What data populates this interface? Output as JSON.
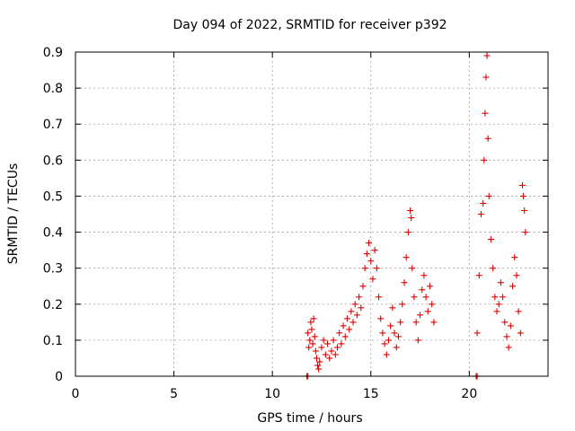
{
  "chart_data": {
    "type": "scatter",
    "title": "Day 094 of 2022, SRMTID for receiver p392",
    "xlabel": "GPS time / hours",
    "ylabel": "SRMTID / TECUs",
    "xlim": [
      0,
      24
    ],
    "ylim": [
      0,
      0.9
    ],
    "xticks": [
      0,
      5,
      10,
      15,
      20
    ],
    "xtick_labels": [
      "0",
      "5",
      "10",
      "15",
      "20"
    ],
    "yticks": [
      0,
      0.1,
      0.2,
      0.3,
      0.4,
      0.5,
      0.6,
      0.7,
      0.8,
      0.9
    ],
    "ytick_labels": [
      "0",
      "0.1",
      "0.2",
      "0.3",
      "0.4",
      "0.5",
      "0.6",
      "0.7",
      "0.8",
      "0.9"
    ],
    "grid": true,
    "marker": "plus",
    "color": "#e00000",
    "series": [
      {
        "points": [
          [
            11.75,
            0.0
          ],
          [
            11.8,
            0.0
          ],
          [
            20.35,
            0.0
          ],
          [
            20.4,
            0.0
          ],
          [
            11.8,
            0.12
          ],
          [
            11.85,
            0.08
          ],
          [
            11.9,
            0.1
          ],
          [
            11.95,
            0.15
          ],
          [
            12.0,
            0.13
          ],
          [
            12.05,
            0.09
          ],
          [
            12.1,
            0.16
          ],
          [
            12.15,
            0.11
          ],
          [
            12.2,
            0.07
          ],
          [
            12.25,
            0.05
          ],
          [
            12.3,
            0.03
          ],
          [
            12.35,
            0.02
          ],
          [
            12.4,
            0.04
          ],
          [
            12.5,
            0.08
          ],
          [
            12.6,
            0.1
          ],
          [
            12.7,
            0.06
          ],
          [
            12.8,
            0.09
          ],
          [
            12.9,
            0.05
          ],
          [
            13.0,
            0.07
          ],
          [
            13.1,
            0.1
          ],
          [
            13.2,
            0.06
          ],
          [
            13.3,
            0.08
          ],
          [
            13.4,
            0.12
          ],
          [
            13.5,
            0.09
          ],
          [
            13.6,
            0.14
          ],
          [
            13.7,
            0.11
          ],
          [
            13.8,
            0.16
          ],
          [
            13.9,
            0.13
          ],
          [
            14.0,
            0.18
          ],
          [
            14.1,
            0.15
          ],
          [
            14.2,
            0.2
          ],
          [
            14.3,
            0.17
          ],
          [
            14.4,
            0.22
          ],
          [
            14.5,
            0.19
          ],
          [
            14.6,
            0.25
          ],
          [
            14.7,
            0.3
          ],
          [
            14.8,
            0.34
          ],
          [
            14.9,
            0.37
          ],
          [
            15.0,
            0.32
          ],
          [
            15.1,
            0.27
          ],
          [
            15.2,
            0.35
          ],
          [
            15.3,
            0.3
          ],
          [
            15.4,
            0.22
          ],
          [
            15.5,
            0.16
          ],
          [
            15.6,
            0.12
          ],
          [
            15.7,
            0.09
          ],
          [
            15.8,
            0.06
          ],
          [
            15.9,
            0.1
          ],
          [
            16.0,
            0.14
          ],
          [
            16.1,
            0.19
          ],
          [
            16.2,
            0.12
          ],
          [
            16.3,
            0.08
          ],
          [
            16.4,
            0.11
          ],
          [
            16.5,
            0.15
          ],
          [
            16.6,
            0.2
          ],
          [
            16.7,
            0.26
          ],
          [
            16.8,
            0.33
          ],
          [
            16.9,
            0.4
          ],
          [
            17.0,
            0.46
          ],
          [
            17.05,
            0.44
          ],
          [
            17.1,
            0.3
          ],
          [
            17.2,
            0.22
          ],
          [
            17.3,
            0.15
          ],
          [
            17.4,
            0.1
          ],
          [
            17.5,
            0.17
          ],
          [
            17.6,
            0.24
          ],
          [
            17.7,
            0.28
          ],
          [
            17.8,
            0.22
          ],
          [
            17.9,
            0.18
          ],
          [
            18.0,
            0.25
          ],
          [
            18.1,
            0.2
          ],
          [
            18.2,
            0.15
          ],
          [
            20.4,
            0.12
          ],
          [
            20.5,
            0.28
          ],
          [
            20.6,
            0.45
          ],
          [
            20.7,
            0.48
          ],
          [
            20.75,
            0.6
          ],
          [
            20.8,
            0.73
          ],
          [
            20.85,
            0.83
          ],
          [
            20.9,
            0.89
          ],
          [
            20.95,
            0.66
          ],
          [
            21.0,
            0.5
          ],
          [
            21.1,
            0.38
          ],
          [
            21.2,
            0.3
          ],
          [
            21.3,
            0.22
          ],
          [
            21.4,
            0.18
          ],
          [
            21.5,
            0.2
          ],
          [
            21.6,
            0.26
          ],
          [
            21.7,
            0.22
          ],
          [
            21.8,
            0.15
          ],
          [
            21.9,
            0.11
          ],
          [
            22.0,
            0.08
          ],
          [
            22.1,
            0.14
          ],
          [
            22.2,
            0.25
          ],
          [
            22.3,
            0.33
          ],
          [
            22.4,
            0.28
          ],
          [
            22.5,
            0.18
          ],
          [
            22.6,
            0.12
          ],
          [
            22.7,
            0.53
          ],
          [
            22.75,
            0.5
          ],
          [
            22.8,
            0.46
          ],
          [
            22.85,
            0.4
          ]
        ]
      }
    ]
  }
}
